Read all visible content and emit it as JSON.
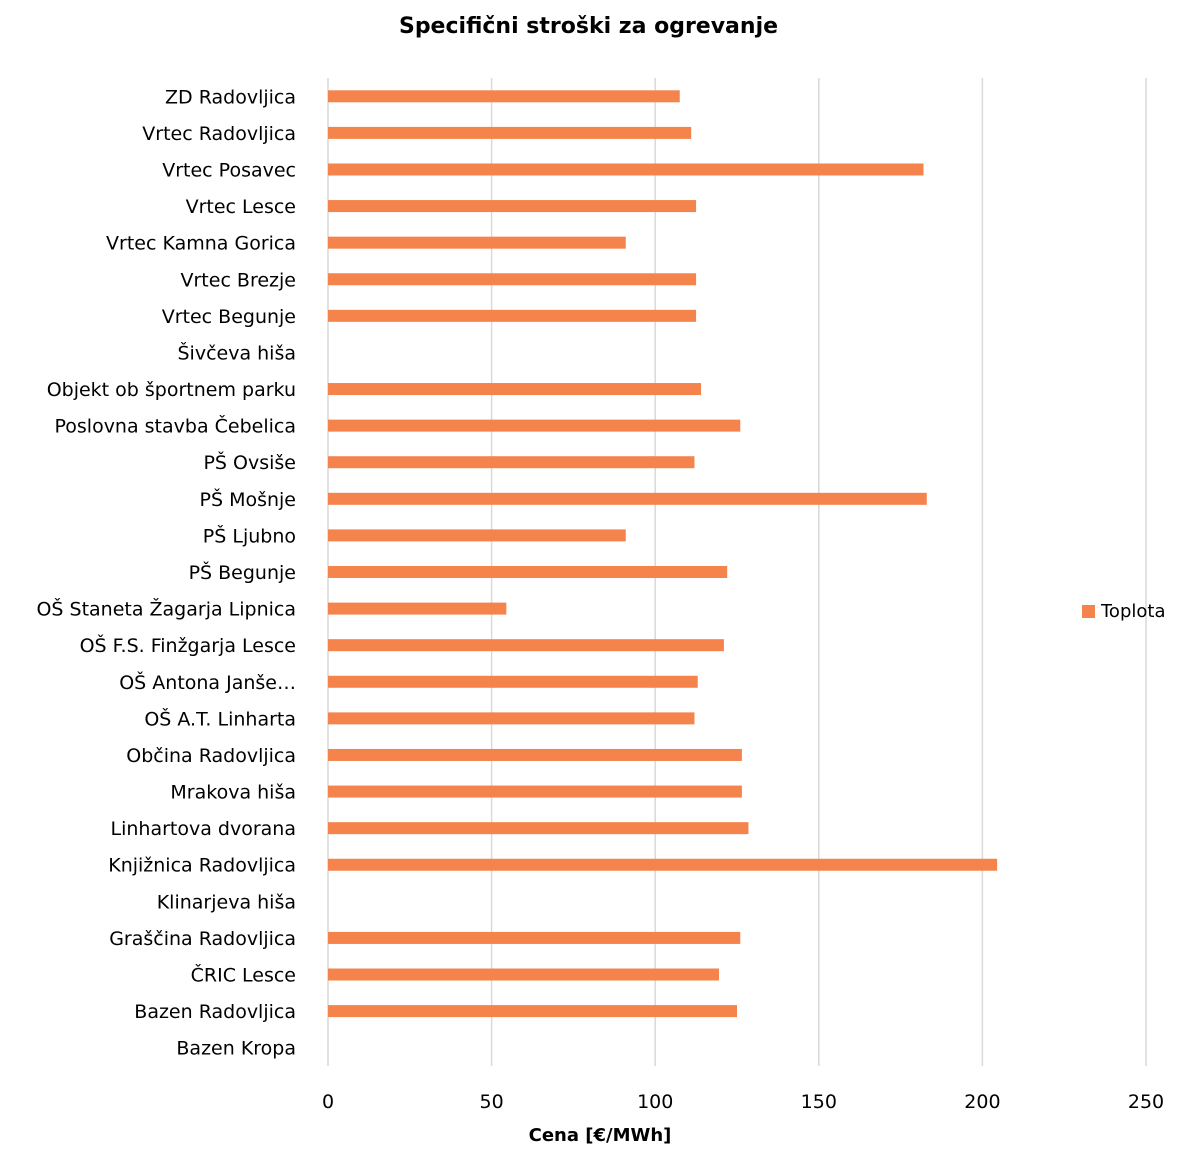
{
  "chart_data": {
    "type": "bar",
    "orientation": "horizontal",
    "title": "Specifični stroški za ogrevanje",
    "xlabel": "Cena [€/MWh]",
    "ylabel": "",
    "xlim": [
      0,
      250
    ],
    "x_ticks": [
      0,
      50,
      100,
      150,
      200,
      250
    ],
    "grid": "vertical",
    "legend_position": "right",
    "categories": [
      "ZD Radovljica",
      "Vrtec Radovljica",
      "Vrtec Posavec",
      "Vrtec Lesce",
      "Vrtec Kamna Gorica",
      "Vrtec Brezje",
      "Vrtec Begunje",
      "Šivčeva hiša",
      "Objekt ob športnem parku",
      "Poslovna stavba Čebelica",
      "PŠ Ovsiše",
      "PŠ Mošnje",
      "PŠ Ljubno",
      "PŠ Begunje",
      "OŠ Staneta Žagarja Lipnica",
      "OŠ F.S. Finžgarja Lesce",
      "OŠ Antona Janše…",
      "OŠ A.T. Linharta",
      "Občina Radovljica",
      "Mrakova hiša",
      "Linhartova dvorana",
      "Knjižnica Radovljica",
      "Klinarjeva hiša",
      "Graščina Radovljica",
      "ČRIC Lesce",
      "Bazen Radovljica",
      "Bazen Kropa"
    ],
    "series": [
      {
        "name": "Toplota",
        "color": "#F4844C",
        "values": [
          107.5,
          111,
          182,
          112.5,
          91,
          112.5,
          112.5,
          null,
          114,
          126,
          112,
          183,
          91,
          122,
          54.5,
          121,
          113,
          112,
          126.5,
          126.5,
          128.5,
          204.5,
          null,
          126,
          119.5,
          125,
          null
        ]
      }
    ]
  }
}
